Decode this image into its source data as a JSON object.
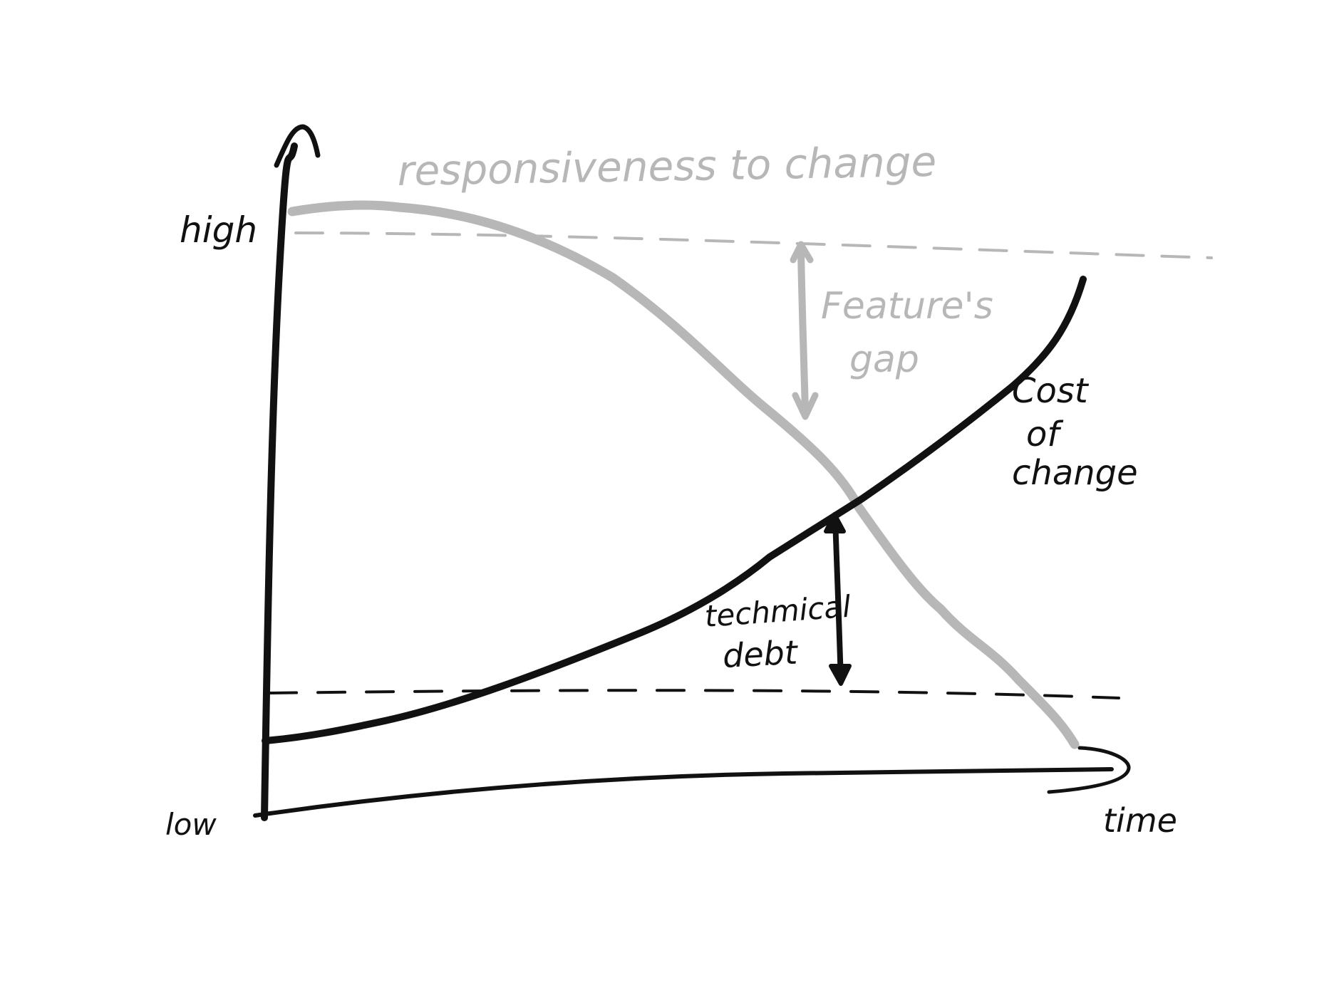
{
  "labels": {
    "y_high": "high",
    "y_low": "low",
    "x_time": "time",
    "responsiveness": "responsiveness to change",
    "feature_gap_line1": "Feature's",
    "feature_gap_line2": "gap",
    "cost_line1": "Cost",
    "cost_line2": "of",
    "cost_line3": "change",
    "debt_line1": "techmical",
    "debt_line2": "debt"
  },
  "colors": {
    "ink": "#111111",
    "responsiveness_curve": "#b7b7b7",
    "dashed_high": "#b7b7b7",
    "dashed_low": "#111111",
    "background": "#ffffff"
  },
  "curves": {
    "responsiveness_to_change": "high at start, stays flat briefly, then falls steeply to low over time",
    "cost_of_change": "low at start, rises with increasing slope over time"
  },
  "annotations": {
    "feature_gap": "gap between the high reference level and the responsiveness curve",
    "technical_debt": "gap between the low reference level and the cost-of-change curve"
  }
}
